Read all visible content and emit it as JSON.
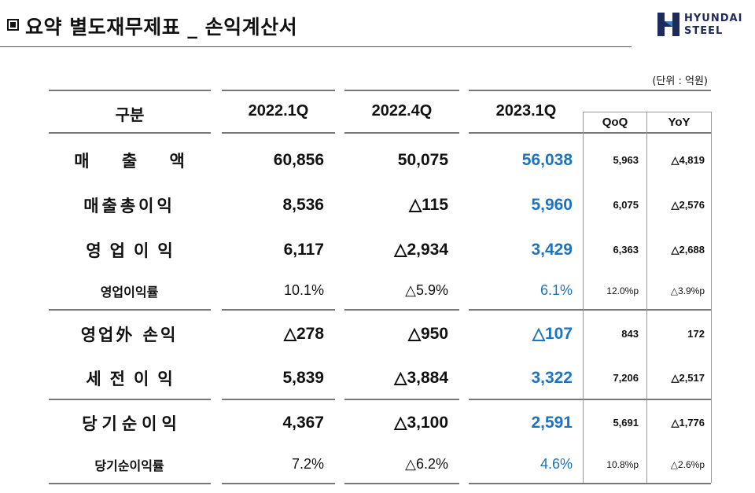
{
  "header": {
    "title": "요약 별도재무제표 _ 손익계산서",
    "logo_line1": "HYUNDAI",
    "logo_line2": "STEEL",
    "unit": "(단위 : 억원)"
  },
  "table": {
    "columns": {
      "label": "구분",
      "c1": "2022.1Q",
      "c2": "2022.4Q",
      "c3": "2023.1Q",
      "qoq": "QoQ",
      "yoy": "YoY"
    },
    "rows": [
      {
        "label": "매 출 액",
        "c1": "60,856",
        "c2": "50,075",
        "c3": "56,038",
        "qoq": "5,963",
        "yoy": "△4,819"
      },
      {
        "label": "매출총이익",
        "c1": "8,536",
        "c2": "△115",
        "c3": "5,960",
        "qoq": "6,075",
        "yoy": "△2,576"
      },
      {
        "label": "영업이익",
        "c1": "6,117",
        "c2": "△2,934",
        "c3": "3,429",
        "qoq": "6,363",
        "yoy": "△2,688"
      },
      {
        "label": "영업이익률",
        "c1": "10.1%",
        "c2": "△5.9%",
        "c3": "6.1%",
        "qoq": "12.0%p",
        "yoy": "△3.9%p"
      },
      {
        "label": "영업外 손익",
        "c1": "△278",
        "c2": "△950",
        "c3": "△107",
        "qoq": "843",
        "yoy": "172"
      },
      {
        "label": "세전이익",
        "c1": "5,839",
        "c2": "△3,884",
        "c3": "3,322",
        "qoq": "7,206",
        "yoy": "△2,517"
      },
      {
        "label": "당기순이익",
        "c1": "4,367",
        "c2": "△3,100",
        "c3": "2,591",
        "qoq": "5,691",
        "yoy": "△1,776"
      },
      {
        "label": "당기순이익률",
        "c1": "7.2%",
        "c2": "△6.2%",
        "c3": "4.6%",
        "qoq": "10.8%p",
        "yoy": "△2.6%p"
      }
    ]
  },
  "colors": {
    "highlight": "#1e73be",
    "logo": "#1d2a5c"
  }
}
